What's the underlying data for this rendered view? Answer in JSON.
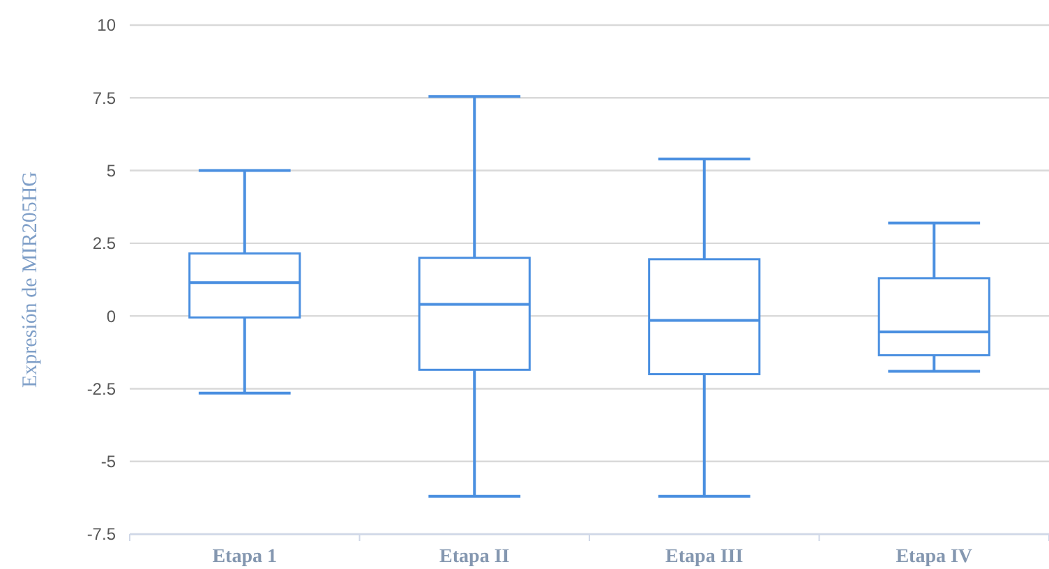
{
  "chart_data": {
    "type": "box",
    "ylabel": "Expresión de MIR205HG",
    "categories": [
      "Etapa 1",
      "Etapa II",
      "Etapa III",
      "Etapa IV"
    ],
    "boxes": [
      {
        "low": -2.65,
        "q1": -0.05,
        "median": 1.15,
        "q3": 2.15,
        "high": 5
      },
      {
        "low": -6.2,
        "q1": -1.85,
        "median": 0.4,
        "q3": 2,
        "high": 7.55
      },
      {
        "low": -6.2,
        "q1": -2,
        "median": -0.15,
        "q3": 1.95,
        "high": 5.4
      },
      {
        "low": -1.9,
        "q1": -1.35,
        "median": -0.55,
        "q3": 1.3,
        "high": 3.2
      }
    ],
    "color": "#4a8fe0",
    "ylim": [
      -7.5,
      10
    ],
    "yticks": [
      -7.5,
      -5,
      -2.5,
      0,
      2.5,
      5,
      7.5,
      10
    ],
    "grid": "y"
  }
}
